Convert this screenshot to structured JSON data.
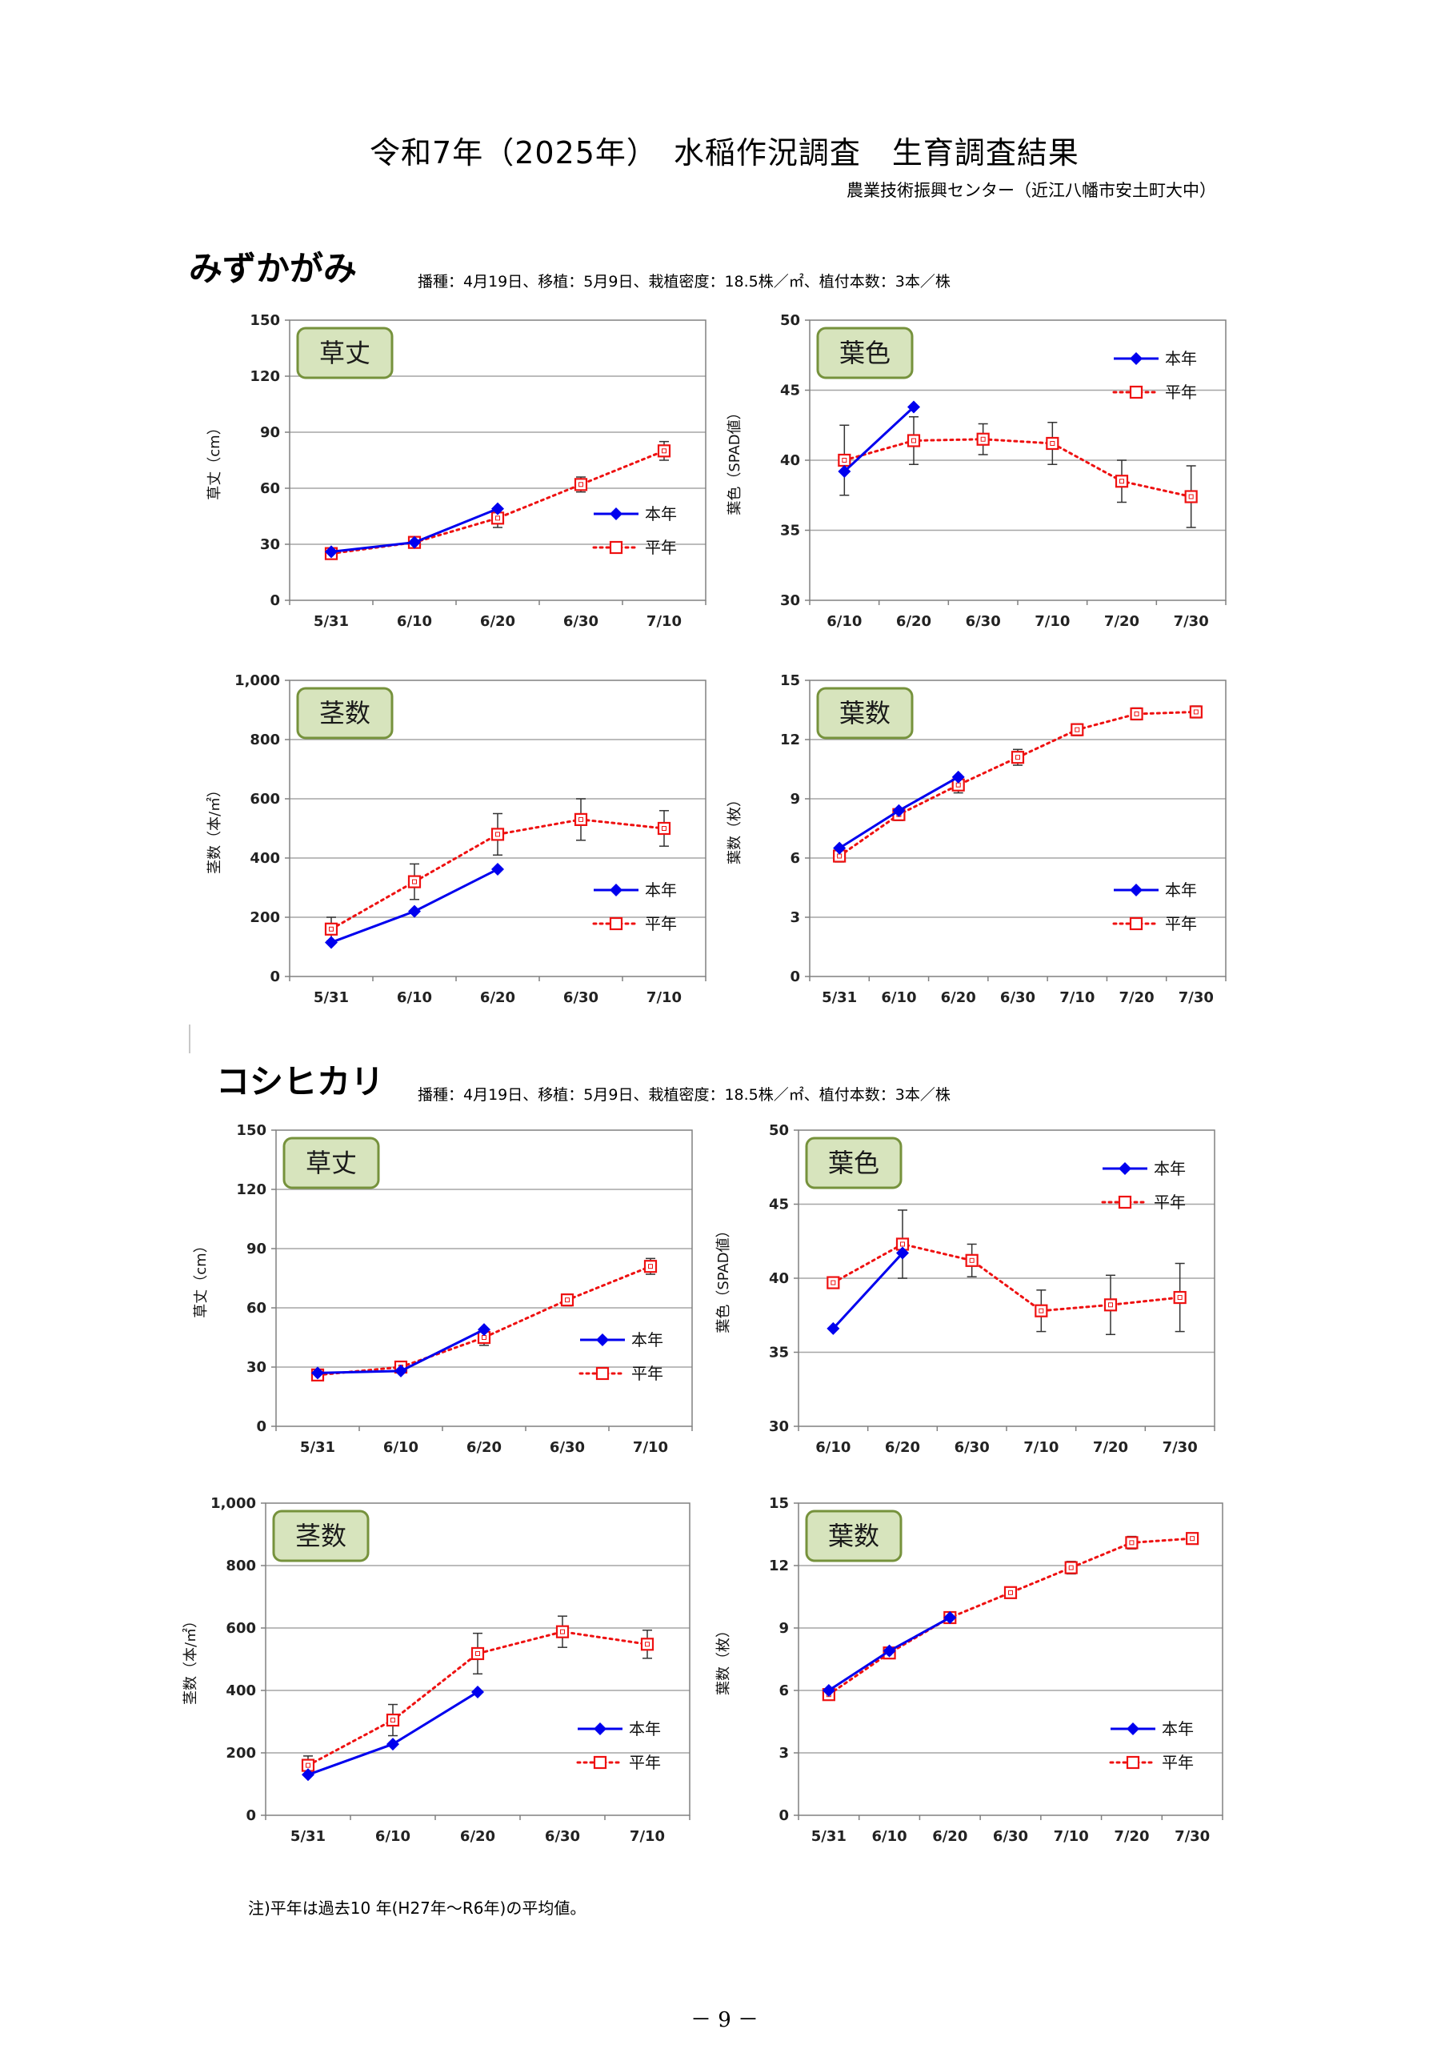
{
  "page": {
    "title": "令和7年（2025年）　水稲作況調査　生育調査結果",
    "org": "農業技術振興センター（近江八幡市安土町大中）",
    "note": "注)平年は過去10 年(H27年～R6年)の平均値。",
    "page_number": "－ 9 －"
  },
  "legend": {
    "current": "本年",
    "normal": "平年"
  },
  "colors": {
    "current": "#0000ee",
    "normal": "#ee1111",
    "label_bg": "#d7e4bd",
    "label_border": "#76923c"
  },
  "sections": [
    {
      "name": "みずかがみ",
      "conditions": "播種：4月19日、移植：5月9日、栽植密度：18.5株／㎡、植付本数：3本／株"
    },
    {
      "name": "コシヒカリ",
      "conditions": "播種：4月19日、移植：5月9日、栽植密度：18.5株／㎡、植付本数：3本／株"
    }
  ],
  "chart_data": [
    {
      "type": "line",
      "title": "草丈",
      "ylabel": "草丈（cm）",
      "categories": [
        "5/31",
        "6/10",
        "6/20",
        "6/30",
        "7/10"
      ],
      "ylim": [
        0,
        150
      ],
      "yticks": [
        "0",
        "30",
        "60",
        "90",
        "120",
        "150"
      ],
      "grid": true,
      "legend": "bottom-right",
      "series": [
        {
          "name": "本年",
          "values": [
            26,
            31,
            49,
            null,
            null
          ]
        },
        {
          "name": "平年",
          "values": [
            25,
            31,
            44,
            62,
            80
          ],
          "error": [
            2,
            3,
            5,
            4,
            5
          ]
        }
      ]
    },
    {
      "type": "line",
      "title": "葉色",
      "ylabel": "葉色（SPAD値）",
      "categories": [
        "6/10",
        "6/20",
        "6/30",
        "7/10",
        "7/20",
        "7/30"
      ],
      "ylim": [
        30,
        50
      ],
      "yticks": [
        "30",
        "35",
        "40",
        "45",
        "50"
      ],
      "grid": true,
      "legend": "top-right",
      "series": [
        {
          "name": "本年",
          "values": [
            39.2,
            43.8,
            null,
            null,
            null,
            null
          ]
        },
        {
          "name": "平年",
          "values": [
            40,
            41.4,
            41.5,
            41.2,
            38.5,
            37.4
          ],
          "error": [
            2.5,
            1.7,
            1.1,
            1.5,
            1.5,
            2.2
          ]
        }
      ]
    },
    {
      "type": "line",
      "title": "茎数",
      "ylabel": "茎数（本/㎡）",
      "categories": [
        "5/31",
        "6/10",
        "6/20",
        "6/30",
        "7/10"
      ],
      "ylim": [
        0,
        1000
      ],
      "yticks": [
        "0",
        "200",
        "400",
        "600",
        "800",
        "1,000"
      ],
      "grid": true,
      "legend": "bottom-right",
      "series": [
        {
          "name": "本年",
          "values": [
            115,
            220,
            362,
            null,
            null
          ]
        },
        {
          "name": "平年",
          "values": [
            160,
            320,
            480,
            530,
            500
          ],
          "error": [
            40,
            60,
            70,
            70,
            60
          ]
        }
      ]
    },
    {
      "type": "line",
      "title": "葉数",
      "ylabel": "葉数（枚）",
      "categories": [
        "5/31",
        "6/10",
        "6/20",
        "6/30",
        "7/10",
        "7/20",
        "7/30"
      ],
      "ylim": [
        0,
        15
      ],
      "yticks": [
        "0",
        "3",
        "6",
        "9",
        "12",
        "15"
      ],
      "grid": true,
      "legend": "bottom-right",
      "series": [
        {
          "name": "本年",
          "values": [
            6.5,
            8.4,
            10.1,
            null,
            null,
            null,
            null
          ]
        },
        {
          "name": "平年",
          "values": [
            6.1,
            8.2,
            9.7,
            11.1,
            12.5,
            13.3,
            13.4
          ],
          "error": [
            0.3,
            0.3,
            0.4,
            0.4,
            0.3,
            0.3,
            0.3
          ]
        }
      ]
    },
    {
      "type": "line",
      "title": "草丈",
      "ylabel": "草丈（cm）",
      "categories": [
        "5/31",
        "6/10",
        "6/20",
        "6/30",
        "7/10"
      ],
      "ylim": [
        0,
        150
      ],
      "yticks": [
        "0",
        "30",
        "60",
        "90",
        "120",
        "150"
      ],
      "grid": true,
      "legend": "bottom-right",
      "series": [
        {
          "name": "本年",
          "values": [
            27,
            28,
            49,
            null,
            null
          ]
        },
        {
          "name": "平年",
          "values": [
            26,
            30,
            45,
            64,
            81
          ],
          "error": [
            2,
            2,
            4,
            3,
            4
          ]
        }
      ]
    },
    {
      "type": "line",
      "title": "葉色",
      "ylabel": "葉色（SPAD値）",
      "categories": [
        "6/10",
        "6/20",
        "6/30",
        "7/10",
        "7/20",
        "7/30"
      ],
      "ylim": [
        30,
        50
      ],
      "yticks": [
        "30",
        "35",
        "40",
        "45",
        "50"
      ],
      "grid": true,
      "legend": "top-right",
      "series": [
        {
          "name": "本年",
          "values": [
            36.6,
            41.7,
            null,
            null,
            null,
            null
          ]
        },
        {
          "name": "平年",
          "values": [
            39.7,
            42.3,
            41.2,
            37.8,
            38.2,
            38.7
          ],
          "error": [
            0,
            2.3,
            1.1,
            1.4,
            2.0,
            2.3
          ]
        }
      ]
    },
    {
      "type": "line",
      "title": "茎数",
      "ylabel": "茎数（本/㎡）",
      "categories": [
        "5/31",
        "6/10",
        "6/20",
        "6/30",
        "7/10"
      ],
      "ylim": [
        0,
        1000
      ],
      "yticks": [
        "0",
        "200",
        "400",
        "600",
        "800",
        "1,000"
      ],
      "grid": true,
      "legend": "bottom-right",
      "series": [
        {
          "name": "本年",
          "values": [
            130,
            228,
            395,
            null,
            null
          ]
        },
        {
          "name": "平年",
          "values": [
            160,
            305,
            518,
            588,
            548
          ],
          "error": [
            30,
            50,
            65,
            50,
            45
          ]
        }
      ]
    },
    {
      "type": "line",
      "title": "葉数",
      "ylabel": "葉数（枚）",
      "categories": [
        "5/31",
        "6/10",
        "6/20",
        "6/30",
        "7/10",
        "7/20",
        "7/30"
      ],
      "ylim": [
        0,
        15
      ],
      "yticks": [
        "0",
        "3",
        "6",
        "9",
        "12",
        "15"
      ],
      "grid": true,
      "legend": "bottom-right",
      "series": [
        {
          "name": "本年",
          "values": [
            6.0,
            7.9,
            9.5,
            null,
            null,
            null,
            null
          ]
        },
        {
          "name": "平年",
          "values": [
            5.8,
            7.8,
            9.5,
            10.7,
            11.9,
            13.1,
            13.3
          ],
          "error": [
            0.2,
            0.2,
            0.2,
            0.2,
            0.3,
            0.3,
            0.2
          ]
        }
      ]
    }
  ]
}
